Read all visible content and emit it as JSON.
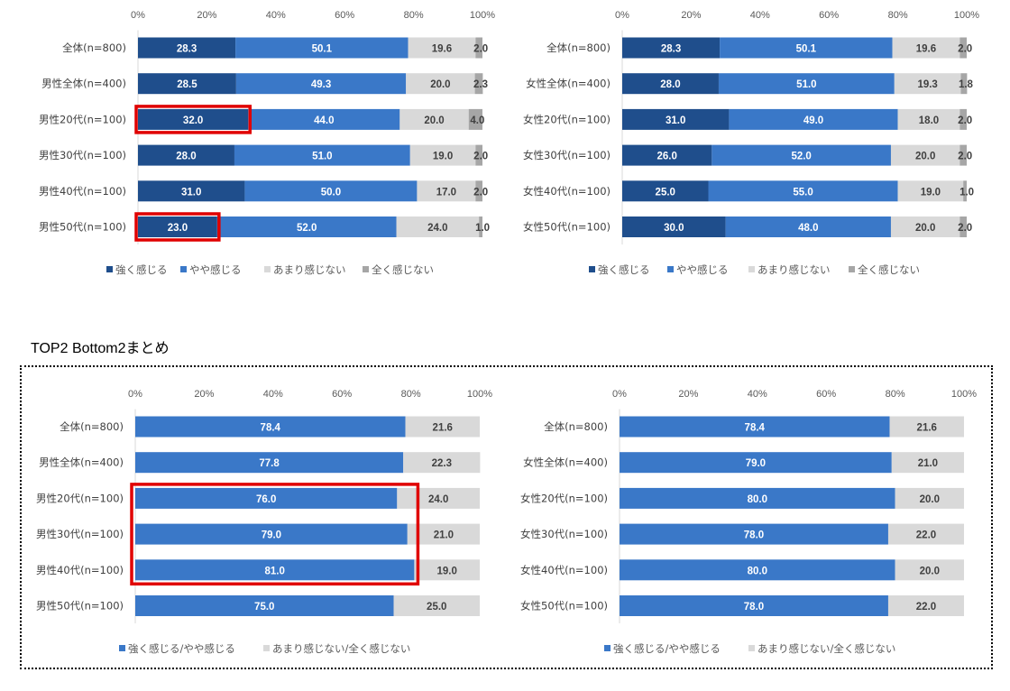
{
  "section_title": "TOP2 Bottom2まとめ",
  "colors": {
    "strong": "#1f4e8c",
    "somewhat": "#3a78c8",
    "not_much": "#d9d9d9",
    "not_at_all": "#a6a6a6",
    "highlight": "#e00000"
  },
  "chart_data": [
    {
      "type": "bar",
      "orientation": "horizontal-stacked-100",
      "xlim": [
        0,
        100
      ],
      "ticks": [
        "0%",
        "20%",
        "40%",
        "60%",
        "80%",
        "100%"
      ],
      "categories": [
        "全体(n=800)",
        "男性全体(n=400)",
        "男性20代(n=100)",
        "男性30代(n=100)",
        "男性40代(n=100)",
        "男性50代(n=100)"
      ],
      "series": [
        {
          "name": "強く感じる",
          "color": "#1f4e8c",
          "labelColor": "#ffffff",
          "values": [
            28.3,
            28.5,
            32.0,
            28.0,
            31.0,
            23.0
          ]
        },
        {
          "name": "やや感じる",
          "color": "#3a78c8",
          "labelColor": "#ffffff",
          "values": [
            50.1,
            49.3,
            44.0,
            51.0,
            50.0,
            52.0
          ]
        },
        {
          "name": "あまり感じない",
          "color": "#d9d9d9",
          "labelColor": "#404040",
          "values": [
            19.6,
            20.0,
            20.0,
            19.0,
            17.0,
            24.0
          ]
        },
        {
          "name": "全く感じない",
          "color": "#a6a6a6",
          "labelColor": "#404040",
          "values": [
            2.0,
            2.3,
            4.0,
            2.0,
            2.0,
            1.0
          ]
        }
      ],
      "highlight": {
        "rows": [
          2,
          5
        ],
        "series": 0
      }
    },
    {
      "type": "bar",
      "orientation": "horizontal-stacked-100",
      "xlim": [
        0,
        100
      ],
      "ticks": [
        "0%",
        "20%",
        "40%",
        "60%",
        "80%",
        "100%"
      ],
      "categories": [
        "全体(n=800)",
        "女性全体(n=400)",
        "女性20代(n=100)",
        "女性30代(n=100)",
        "女性40代(n=100)",
        "女性50代(n=100)"
      ],
      "series": [
        {
          "name": "強く感じる",
          "color": "#1f4e8c",
          "labelColor": "#ffffff",
          "values": [
            28.3,
            28.0,
            31.0,
            26.0,
            25.0,
            30.0
          ]
        },
        {
          "name": "やや感じる",
          "color": "#3a78c8",
          "labelColor": "#ffffff",
          "values": [
            50.1,
            51.0,
            49.0,
            52.0,
            55.0,
            48.0
          ]
        },
        {
          "name": "あまり感じない",
          "color": "#d9d9d9",
          "labelColor": "#404040",
          "values": [
            19.6,
            19.3,
            18.0,
            20.0,
            19.0,
            20.0
          ]
        },
        {
          "name": "全く感じない",
          "color": "#a6a6a6",
          "labelColor": "#404040",
          "values": [
            2.0,
            1.8,
            2.0,
            2.0,
            1.0,
            2.0
          ]
        }
      ]
    },
    {
      "type": "bar",
      "orientation": "horizontal-stacked-100",
      "xlim": [
        0,
        100
      ],
      "ticks": [
        "0%",
        "20%",
        "40%",
        "60%",
        "80%",
        "100%"
      ],
      "categories": [
        "全体(n=800)",
        "男性全体(n=400)",
        "男性20代(n=100)",
        "男性30代(n=100)",
        "男性40代(n=100)",
        "男性50代(n=100)"
      ],
      "series": [
        {
          "name": "強く感じる/やや感じる",
          "color": "#3a78c8",
          "labelColor": "#ffffff",
          "values": [
            78.4,
            77.8,
            76.0,
            79.0,
            81.0,
            75.0
          ]
        },
        {
          "name": "あまり感じない/全く感じない",
          "color": "#d9d9d9",
          "labelColor": "#404040",
          "values": [
            21.6,
            22.3,
            24.0,
            21.0,
            19.0,
            25.0
          ]
        }
      ],
      "highlight": {
        "rows": [
          2,
          3,
          4
        ],
        "series": 0,
        "group": true
      }
    },
    {
      "type": "bar",
      "orientation": "horizontal-stacked-100",
      "xlim": [
        0,
        100
      ],
      "ticks": [
        "0%",
        "20%",
        "40%",
        "60%",
        "80%",
        "100%"
      ],
      "categories": [
        "全体(n=800)",
        "女性全体(n=400)",
        "女性20代(n=100)",
        "女性30代(n=100)",
        "女性40代(n=100)",
        "女性50代(n=100)"
      ],
      "series": [
        {
          "name": "強く感じる/やや感じる",
          "color": "#3a78c8",
          "labelColor": "#ffffff",
          "values": [
            78.4,
            79.0,
            80.0,
            78.0,
            80.0,
            78.0
          ]
        },
        {
          "name": "あまり感じない/全く感じない",
          "color": "#d9d9d9",
          "labelColor": "#404040",
          "values": [
            21.6,
            21.0,
            20.0,
            22.0,
            20.0,
            22.0
          ]
        }
      ]
    }
  ]
}
